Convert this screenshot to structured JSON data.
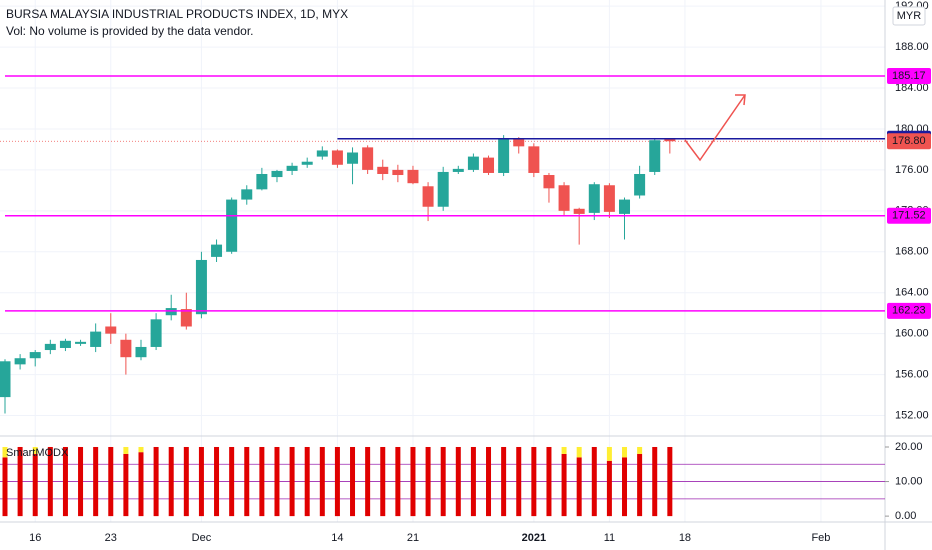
{
  "chart_data": {
    "type": "candlestick",
    "title": "BURSA MALAYSIA INDUSTRIAL PRODUCTS INDEX, 1D, MYX",
    "subtitle": "Vol: No volume is provided by the data vendor.",
    "currency": "MYR",
    "categories": [
      null,
      null,
      "16",
      null,
      null,
      null,
      null,
      "23",
      null,
      null,
      null,
      null,
      null,
      "Dec",
      null,
      null,
      null,
      null,
      null,
      null,
      null,
      null,
      "14",
      null,
      null,
      null,
      null,
      "21",
      null,
      null,
      null,
      null,
      null,
      null,
      null,
      "2021",
      null,
      null,
      null,
      null,
      "11",
      null,
      null,
      null,
      null,
      "18",
      null,
      null,
      null,
      null,
      null,
      null,
      null,
      null,
      "Feb",
      null,
      null,
      null
    ],
    "open": [
      153.8,
      157,
      157.6,
      158.4,
      158.6,
      159,
      158.7,
      160.7,
      159.4,
      157.7,
      158.7,
      161.8,
      162.4,
      161.9,
      167.5,
      168,
      173.1,
      174.1,
      175.3,
      175.9,
      176.5,
      177.3,
      177.9,
      176.6,
      178.2,
      176.3,
      176,
      176,
      174.4,
      172.4,
      175.8,
      176,
      177.2,
      175.7,
      179.1,
      178.3,
      175.5,
      174.5,
      172.2,
      171.8,
      174.5,
      171.7,
      173.5,
      175.8,
      179,
      null,
      null,
      null,
      null,
      null,
      null,
      null,
      null,
      null,
      null,
      null,
      null,
      null
    ],
    "high": [
      157.5,
      158,
      158.4,
      159.4,
      159.5,
      159.4,
      161,
      162,
      160,
      159.4,
      162,
      163.8,
      164,
      168,
      169.2,
      173.3,
      174.5,
      176.2,
      176,
      176.7,
      177.2,
      178.3,
      178,
      178.2,
      178.4,
      177,
      176.5,
      176.4,
      174.8,
      176.3,
      176.4,
      177.6,
      177.4,
      179.4,
      179.2,
      178.6,
      175.7,
      174.8,
      172.3,
      174.8,
      174.7,
      173.3,
      176.4,
      179,
      179.1,
      null,
      null,
      null,
      null,
      null,
      null,
      null,
      null,
      null,
      null,
      null,
      null,
      null
    ],
    "low": [
      152.2,
      156.5,
      156.8,
      158,
      158.3,
      158.8,
      158.2,
      159,
      156,
      157.4,
      158.4,
      161.3,
      160.4,
      161.5,
      167,
      167.8,
      172.6,
      174,
      174.8,
      175.5,
      176.2,
      177,
      176.2,
      174.6,
      175.6,
      175,
      174.8,
      174.6,
      171,
      172,
      175.6,
      175.8,
      175.5,
      175.4,
      177.6,
      175.3,
      172.8,
      171.6,
      168.7,
      171.1,
      171.3,
      169.2,
      173.2,
      175.5,
      177.6,
      null,
      null,
      null,
      null,
      null,
      null,
      null,
      null,
      null,
      null,
      null,
      null,
      null
    ],
    "close": [
      157.3,
      157.6,
      158.2,
      159,
      159.3,
      159.2,
      160.2,
      160,
      157.7,
      158.7,
      161.4,
      162.5,
      160.7,
      167.2,
      168.7,
      173.1,
      174.1,
      175.6,
      175.9,
      176.4,
      176.8,
      177.9,
      176.5,
      177.7,
      176,
      175.6,
      175.5,
      174.7,
      172.4,
      175.8,
      176.1,
      177.3,
      175.7,
      179.1,
      178.3,
      175.7,
      174.2,
      172,
      171.7,
      174.6,
      171.9,
      173.1,
      175.6,
      178.9,
      178.8,
      null,
      null,
      null,
      null,
      null,
      null,
      null,
      null,
      null,
      null,
      null,
      null,
      null
    ],
    "up_color": "#26a69a",
    "down_color": "#ef5350",
    "ylim": [
      150,
      192.6
    ],
    "yticks": [
      {
        "value": 152,
        "label": "152.00"
      },
      {
        "value": 156,
        "label": "156.00"
      },
      {
        "value": 160,
        "label": "160.00"
      },
      {
        "value": 164,
        "label": "164.00"
      },
      {
        "value": 168,
        "label": "168.00"
      },
      {
        "value": 172,
        "label": "172.00"
      },
      {
        "value": 176,
        "label": "176.00"
      },
      {
        "value": 180,
        "label": "180.00"
      },
      {
        "value": 184,
        "label": "184.00"
      },
      {
        "value": 188,
        "label": "188.00"
      },
      {
        "value": 192,
        "label": "192.00"
      }
    ],
    "grid": true,
    "lines": [
      {
        "value": 185.17,
        "color": "#ff00ff",
        "from": 0
      },
      {
        "value": 179.04,
        "color": "#1a1a9e",
        "from": 22
      },
      {
        "value": 171.52,
        "color": "#ff00ff",
        "from": 0
      },
      {
        "value": 162.23,
        "color": "#ff00ff",
        "from": 0
      }
    ],
    "last_price": {
      "value": 178.8,
      "label": "178.80",
      "color": "#ef5350"
    },
    "indicator": {
      "title": "SmartMODX",
      "values": [
        17,
        20,
        18,
        20,
        20,
        20,
        20,
        20,
        18,
        18.5,
        20,
        20,
        20,
        20,
        20,
        20,
        20,
        20,
        20,
        20,
        20,
        20,
        20,
        20,
        20,
        20,
        20,
        20,
        20,
        20,
        20,
        20,
        20,
        20,
        20,
        20,
        20,
        18,
        17,
        20,
        16,
        17,
        18,
        20,
        20,
        null,
        null,
        null,
        null,
        null,
        null,
        null,
        null,
        null,
        null,
        null,
        null,
        null
      ],
      "top_values": [
        3,
        0,
        2,
        0,
        0,
        0,
        0,
        0,
        2,
        1.5,
        0,
        0,
        0,
        0,
        0,
        0,
        0,
        0,
        0,
        0,
        0,
        0,
        0,
        0,
        0,
        0,
        0,
        0,
        0,
        0,
        0,
        0,
        0,
        0,
        0,
        0,
        0,
        2,
        3,
        0,
        4,
        3,
        2,
        0,
        0,
        null,
        null,
        null,
        null,
        null,
        null,
        null,
        null,
        null,
        null,
        null,
        null,
        null
      ],
      "color": "#e00000",
      "top_color": "#ffee33",
      "ylim": [
        -1.7,
        22.6
      ],
      "yticks": [
        {
          "value": 0,
          "label": "0.00"
        },
        {
          "value": 10,
          "label": "10.00"
        },
        {
          "value": 20,
          "label": "20.00"
        }
      ],
      "levels": [
        5,
        10,
        15
      ],
      "level_color": "#9c27b0"
    }
  }
}
